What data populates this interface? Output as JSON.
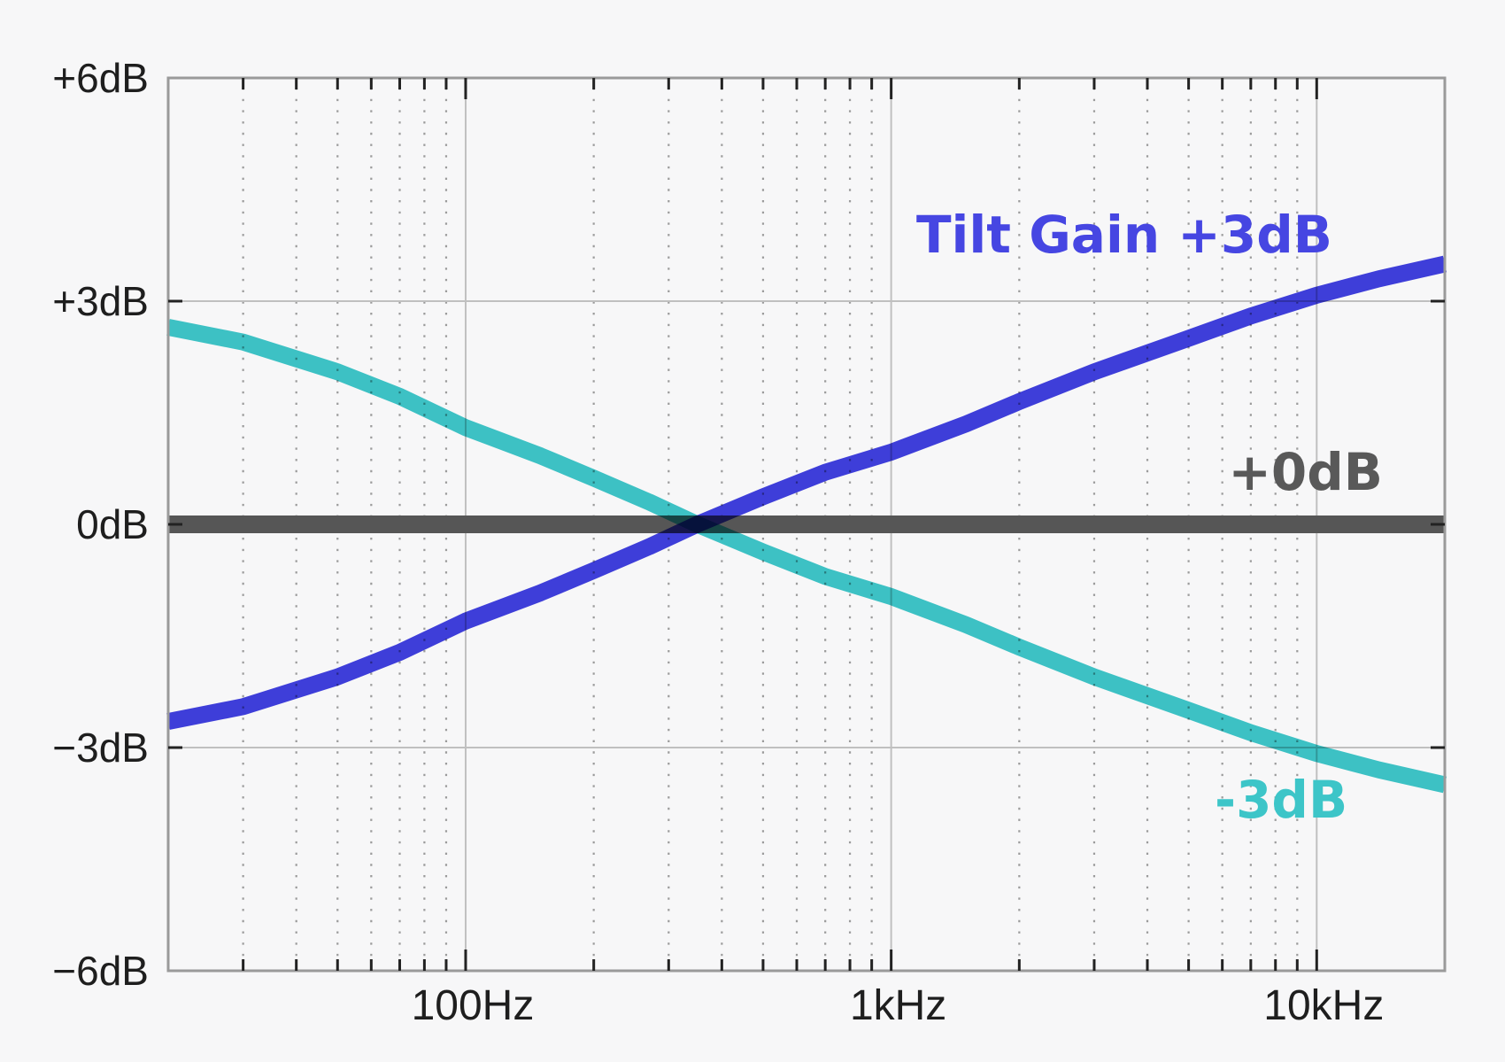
{
  "chart_data": {
    "type": "line",
    "title": "",
    "xlabel": "",
    "ylabel": "",
    "x_scale": "log",
    "xlim": [
      20,
      20000
    ],
    "ylim": [
      -6,
      6
    ],
    "grid": {
      "major_vertical_hz": [
        100,
        1000,
        10000
      ],
      "minor_vertical_style": "dotted",
      "horizontal_db": [
        3,
        -3
      ]
    },
    "x_ticks": [
      {
        "f": 100,
        "label": "100Hz"
      },
      {
        "f": 1000,
        "label": "1kHz"
      },
      {
        "f": 10000,
        "label": "10kHz"
      }
    ],
    "y_ticks": [
      {
        "db": 6,
        "label": "+6dB"
      },
      {
        "db": 3,
        "label": "+3dB"
      },
      {
        "db": 0,
        "label": "0dB"
      },
      {
        "db": -3,
        "label": "−3dB"
      },
      {
        "db": -6,
        "label": "−6dB"
      }
    ],
    "series": [
      {
        "name": "flat-0db",
        "label": "+0dB",
        "color": "#565656",
        "width": 20,
        "points": [
          [
            20,
            0
          ],
          [
            20000,
            0
          ]
        ]
      },
      {
        "name": "tilt-up-3db",
        "label": "Tilt Gain +3dB",
        "color": "#4040df",
        "width": 19,
        "points": [
          [
            20,
            -2.65
          ],
          [
            30,
            -2.45
          ],
          [
            50,
            -2.05
          ],
          [
            70,
            -1.72
          ],
          [
            100,
            -1.3
          ],
          [
            150,
            -0.92
          ],
          [
            200,
            -0.62
          ],
          [
            270,
            -0.3
          ],
          [
            350,
            0
          ],
          [
            500,
            0.37
          ],
          [
            700,
            0.7
          ],
          [
            1000,
            0.97
          ],
          [
            1500,
            1.35
          ],
          [
            2000,
            1.65
          ],
          [
            3000,
            2.05
          ],
          [
            5000,
            2.5
          ],
          [
            7000,
            2.8
          ],
          [
            10000,
            3.08
          ],
          [
            14000,
            3.3
          ],
          [
            20000,
            3.5
          ]
        ]
      },
      {
        "name": "tilt-down-3db",
        "label": "-3dB",
        "color": "#3fc8ca",
        "width": 19,
        "points": [
          [
            20,
            2.65
          ],
          [
            30,
            2.45
          ],
          [
            50,
            2.05
          ],
          [
            70,
            1.72
          ],
          [
            100,
            1.3
          ],
          [
            150,
            0.92
          ],
          [
            200,
            0.62
          ],
          [
            270,
            0.3
          ],
          [
            350,
            0
          ],
          [
            500,
            -0.37
          ],
          [
            700,
            -0.7
          ],
          [
            1000,
            -0.97
          ],
          [
            1500,
            -1.35
          ],
          [
            2000,
            -1.65
          ],
          [
            3000,
            -2.05
          ],
          [
            5000,
            -2.5
          ],
          [
            7000,
            -2.8
          ],
          [
            10000,
            -3.08
          ],
          [
            14000,
            -3.3
          ],
          [
            20000,
            -3.5
          ]
        ]
      }
    ],
    "pivot_frequency_hz": 350,
    "annotations": [
      {
        "id": "tilt-gain",
        "text": "Tilt Gain +3dB",
        "color": "#4646e2"
      },
      {
        "id": "zero-db",
        "text": "+0dB",
        "color": "#595959"
      },
      {
        "id": "minus-3db",
        "text": "-3dB",
        "color": "#3dc5c8"
      }
    ],
    "colors": {
      "background": "#f7f7f8",
      "plot_border": "#9a9a9a",
      "grid_major": "#c0c0c0",
      "grid_minor_dots": "#9b9b9b",
      "tick_marks": "#222222",
      "tick_text": "#1e1e1e"
    }
  }
}
